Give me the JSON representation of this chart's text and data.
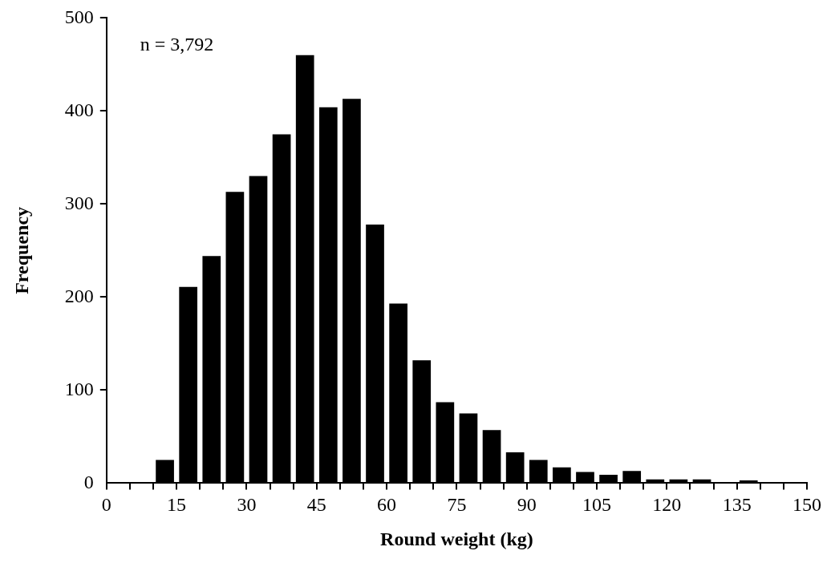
{
  "chart_data": {
    "type": "histogram",
    "xlabel": "Round weight (kg)",
    "ylabel": "Frequency",
    "annotations": [
      "n = 3,792"
    ],
    "bins": [
      0,
      5,
      10,
      15,
      20,
      25,
      30,
      35,
      40,
      45,
      50,
      55,
      60,
      65,
      70,
      75,
      80,
      85,
      90,
      95,
      100,
      105,
      110,
      115,
      120,
      125,
      130,
      135,
      140,
      145,
      150
    ],
    "values": [
      0,
      0,
      25,
      211,
      244,
      313,
      330,
      375,
      460,
      404,
      413,
      278,
      193,
      132,
      87,
      75,
      57,
      33,
      25,
      17,
      12,
      9,
      13,
      4,
      4,
      4,
      1,
      3,
      1,
      0
    ],
    "color": "#000000",
    "xlim": [
      0,
      150
    ],
    "xticks": [
      0,
      {
        "value": 5,
        "label": null
      },
      {
        "value": 10,
        "label": null
      },
      15,
      {
        "value": 20,
        "label": null
      },
      {
        "value": 25,
        "label": null
      },
      30,
      {
        "value": 35,
        "label": null
      },
      {
        "value": 40,
        "label": null
      },
      45,
      {
        "value": 50,
        "label": null
      },
      {
        "value": 55,
        "label": null
      },
      60,
      {
        "value": 65,
        "label": null
      },
      {
        "value": 70,
        "label": null
      },
      75,
      {
        "value": 80,
        "label": null
      },
      {
        "value": 85,
        "label": null
      },
      90,
      {
        "value": 95,
        "label": null
      },
      {
        "value": 100,
        "label": null
      },
      105,
      {
        "value": 110,
        "label": null
      },
      {
        "value": 115,
        "label": null
      },
      120,
      {
        "value": 125,
        "label": null
      },
      {
        "value": 130,
        "label": null
      },
      135,
      {
        "value": 140,
        "label": null
      },
      {
        "value": 145,
        "label": null
      },
      150
    ],
    "ylim": [
      0,
      500
    ],
    "yticks": [
      0,
      100,
      200,
      300,
      400,
      500
    ],
    "grid": false,
    "legend": false
  }
}
